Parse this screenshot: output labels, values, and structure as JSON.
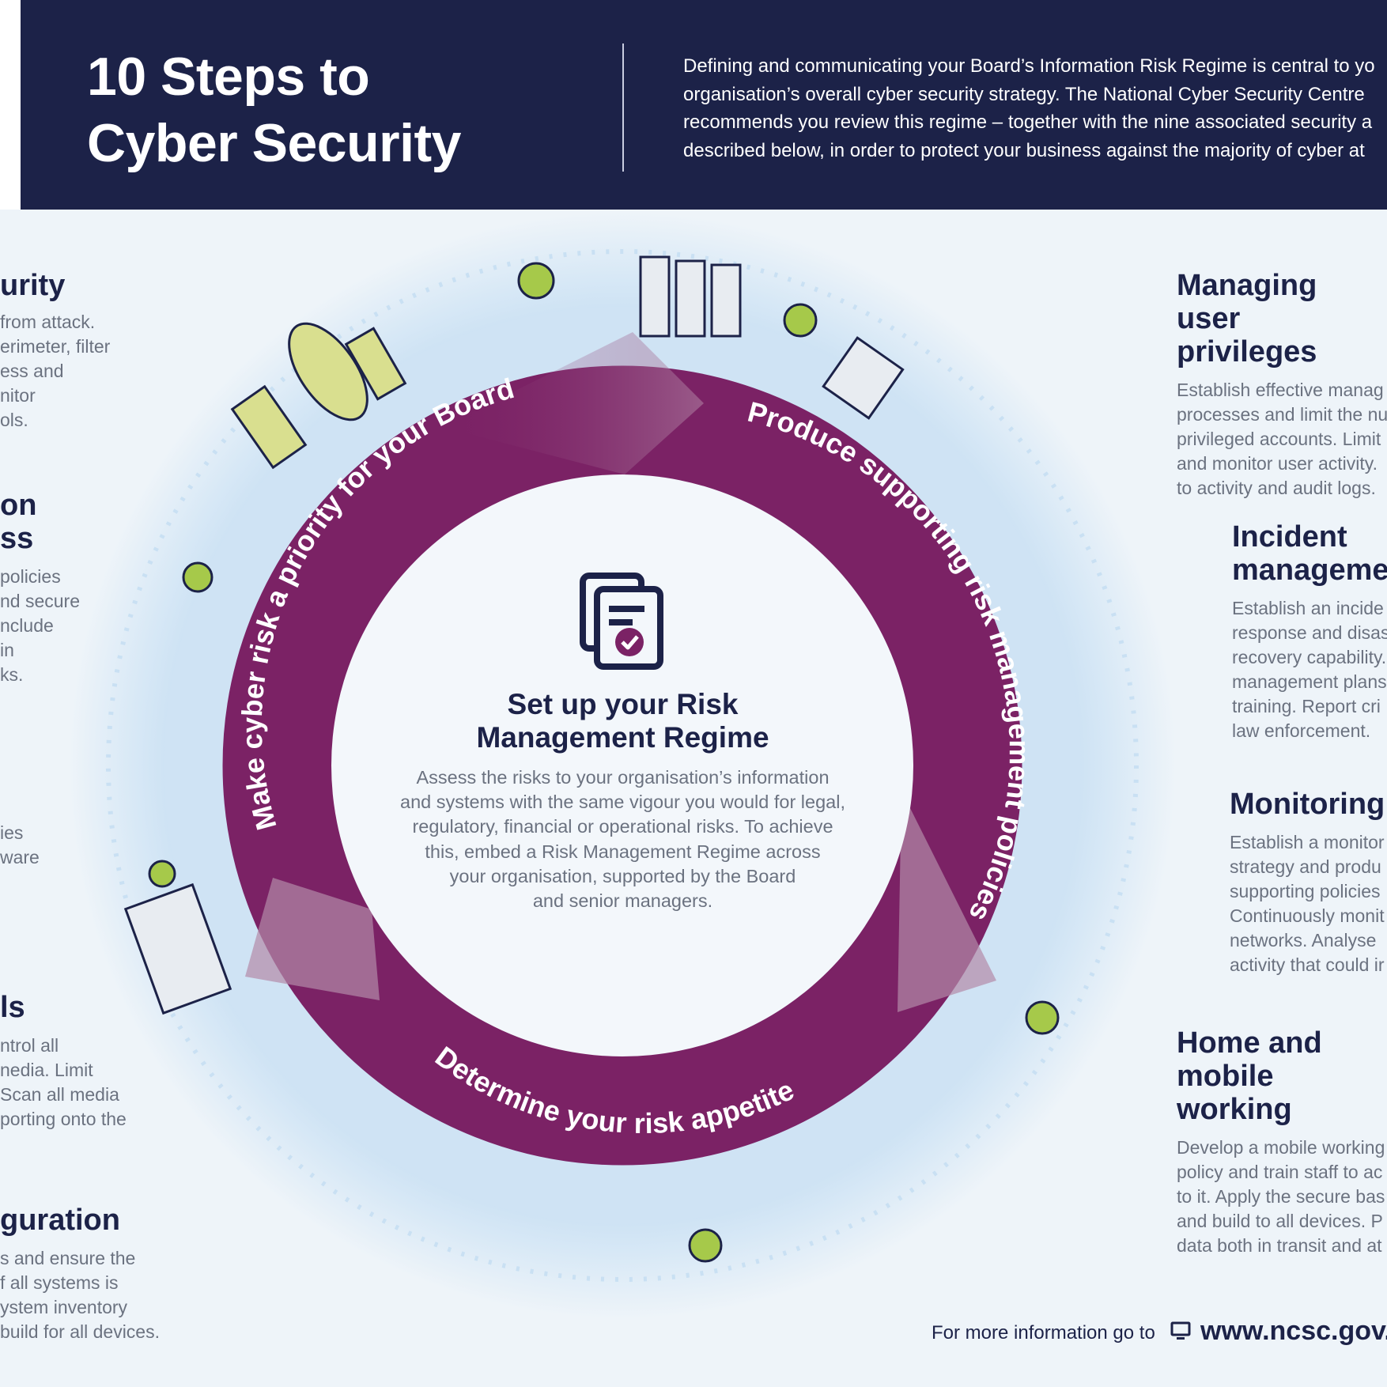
{
  "header": {
    "title_line1": "10 Steps to",
    "title_line2": "Cyber Security",
    "intro": [
      "Defining and communicating your Board’s Information Risk Regime is central to yo",
      "organisation’s overall cyber security strategy. The National Cyber Security Centre",
      "recommends you review this regime – together with the nine associated security a",
      "described below, in order to protect your business against the majority of cyber at"
    ]
  },
  "left_sections": [
    {
      "title": [
        "urity"
      ],
      "body": [
        "from attack.",
        "erimeter, filter",
        "ess and",
        "nitor",
        "ols."
      ]
    },
    {
      "title": [
        "on",
        "ss"
      ],
      "body": [
        "policies",
        "nd secure",
        "nclude",
        "in",
        "ks."
      ]
    },
    {
      "title": [],
      "body": [
        "ies",
        "ware"
      ]
    },
    {
      "title": [
        "ls"
      ],
      "body": [
        "ntrol all",
        "nedia. Limit",
        "Scan all media",
        "porting onto the"
      ]
    },
    {
      "title": [
        "guration"
      ],
      "body": [
        "s and ensure the",
        "f all systems is",
        "ystem inventory",
        "build for all devices."
      ]
    }
  ],
  "right_sections": [
    {
      "title": [
        "Managing user",
        "privileges"
      ],
      "body": [
        "Establish effective manag",
        "processes and limit the nu",
        "privileged accounts. Limit",
        "and monitor user activity.",
        "to activity and audit logs."
      ]
    },
    {
      "title": [
        "Incident",
        "manageme"
      ],
      "body": [
        "Establish an incide",
        "response and disas",
        "recovery capability.",
        "management plans",
        "training. Report cri",
        "law enforcement."
      ]
    },
    {
      "title": [
        "Monitoring"
      ],
      "body": [
        "Establish a monitor",
        "strategy and produ",
        "supporting policies",
        "Continuously monit",
        "networks. Analyse",
        "activity that could ir"
      ]
    },
    {
      "title": [
        "Home and",
        "mobile working"
      ],
      "body": [
        "Develop a mobile working",
        "policy and train staff to ac",
        "to it. Apply the secure bas",
        "and build to all devices. P",
        "data both in transit and at"
      ]
    }
  ],
  "ring": {
    "arc1": "Make cyber risk a priority for your Board",
    "arc2": "Produce supporting risk management policies",
    "arc3": "Determine your risk appetite"
  },
  "center": {
    "title_line1": "Set up your Risk",
    "title_line2": "Management Regime",
    "desc": [
      "Assess the risks to your organisation’s information",
      "and systems with the same vigour you would for legal,",
      "regulatory, financial or operational risks. To achieve",
      "this, embed a Risk Management Regime across",
      "your organisation, supported by the Board",
      "and senior managers."
    ]
  },
  "footer": {
    "text": "For more information go to",
    "url": "www.ncsc.gov."
  },
  "colors": {
    "navy": "#1c2248",
    "purple": "#7b2265",
    "light_bg": "#eef4f9"
  }
}
